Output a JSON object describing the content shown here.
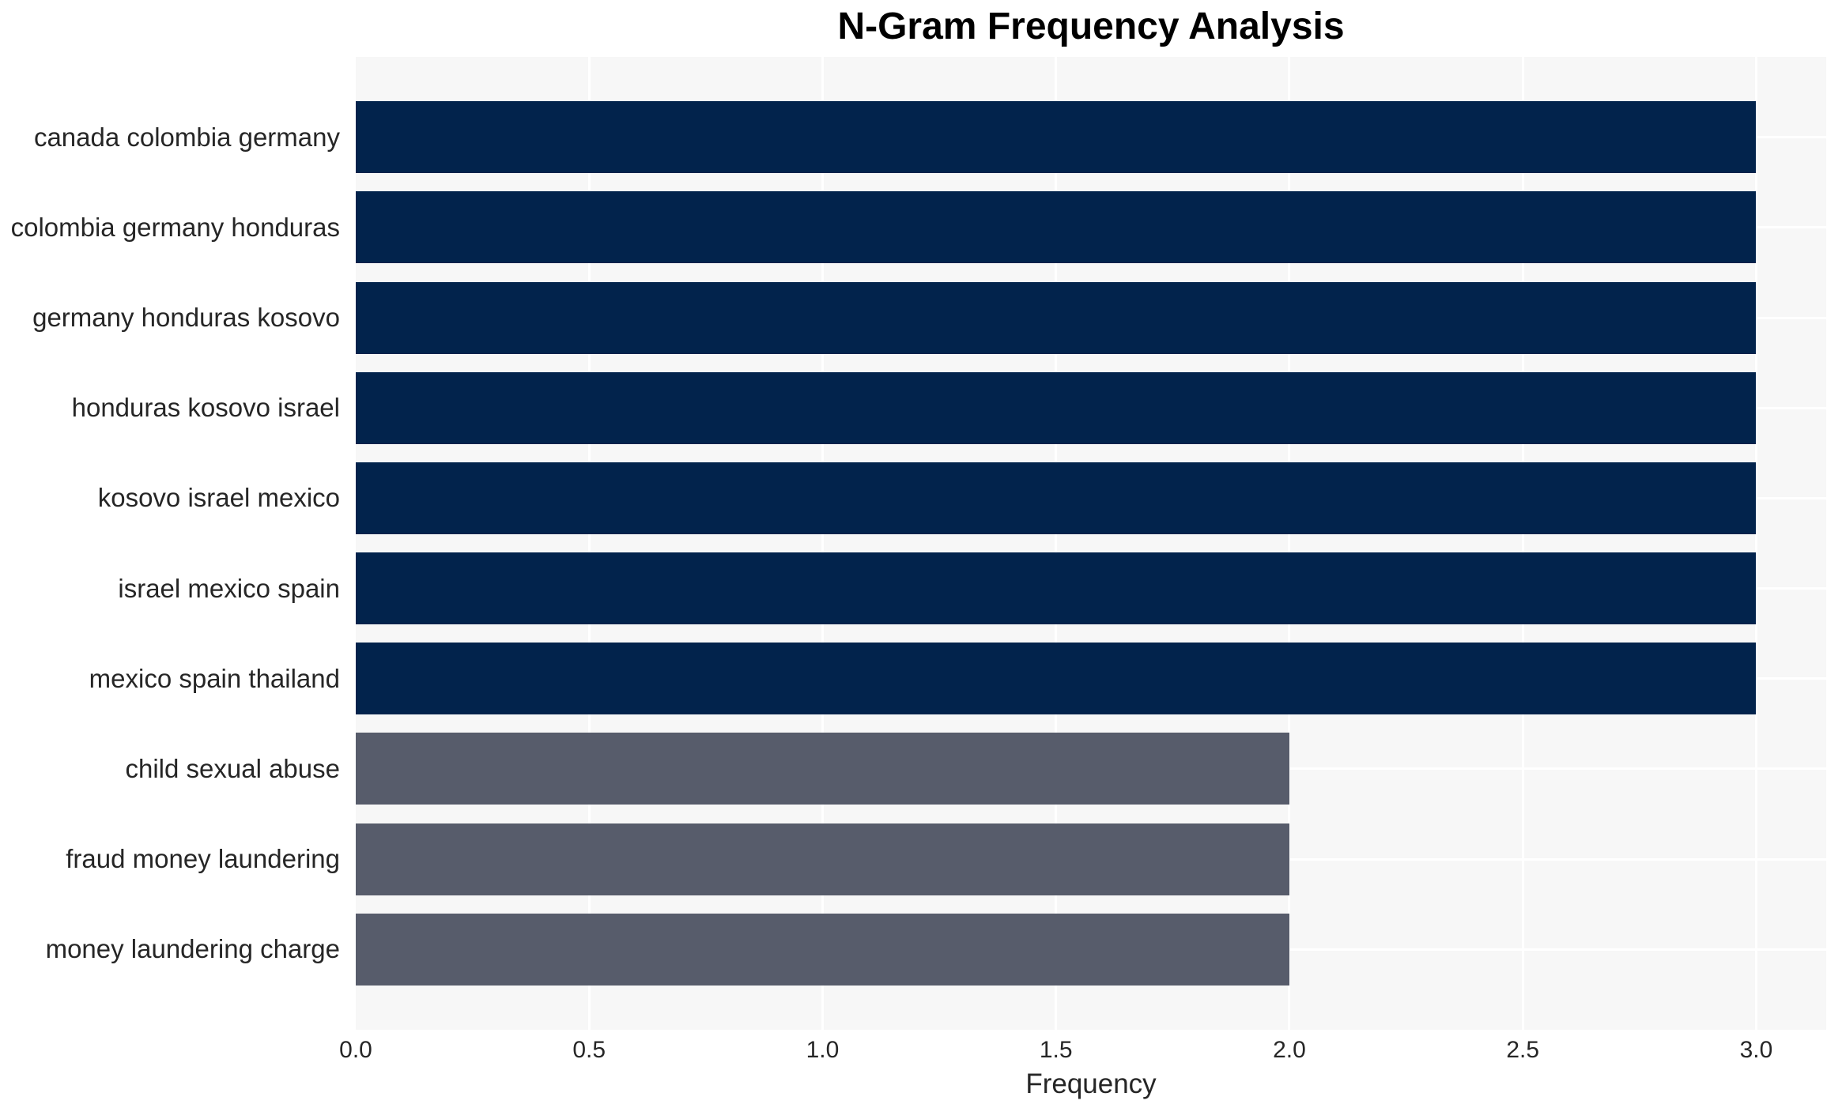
{
  "title": "N-Gram Frequency Analysis",
  "colors": {
    "bar_high": "#02234C",
    "bar_low": "#575C6B",
    "plot_bg": "#F7F7F7",
    "grid": "#FFFFFF",
    "text": "#262626",
    "title_text": "#000000"
  },
  "chart_data": {
    "type": "bar",
    "orientation": "horizontal",
    "title": "N-Gram Frequency Analysis",
    "categories": [
      "canada colombia germany",
      "colombia germany honduras",
      "germany honduras kosovo",
      "honduras kosovo israel",
      "kosovo israel mexico",
      "israel mexico spain",
      "mexico spain thailand",
      "child sexual abuse",
      "fraud money laundering",
      "money laundering charge"
    ],
    "values": [
      3,
      3,
      3,
      3,
      3,
      3,
      3,
      2,
      2,
      2
    ],
    "bar_colors": [
      "#02234C",
      "#02234C",
      "#02234C",
      "#02234C",
      "#02234C",
      "#02234C",
      "#02234C",
      "#575C6B",
      "#575C6B",
      "#575C6B"
    ],
    "xlabel": "Frequency",
    "ylabel": "",
    "x_ticks": [
      "0.0",
      "0.5",
      "1.0",
      "1.5",
      "2.0",
      "2.5",
      "3.0"
    ],
    "xlim": [
      0,
      3.15
    ],
    "grid": true,
    "legend": false
  }
}
